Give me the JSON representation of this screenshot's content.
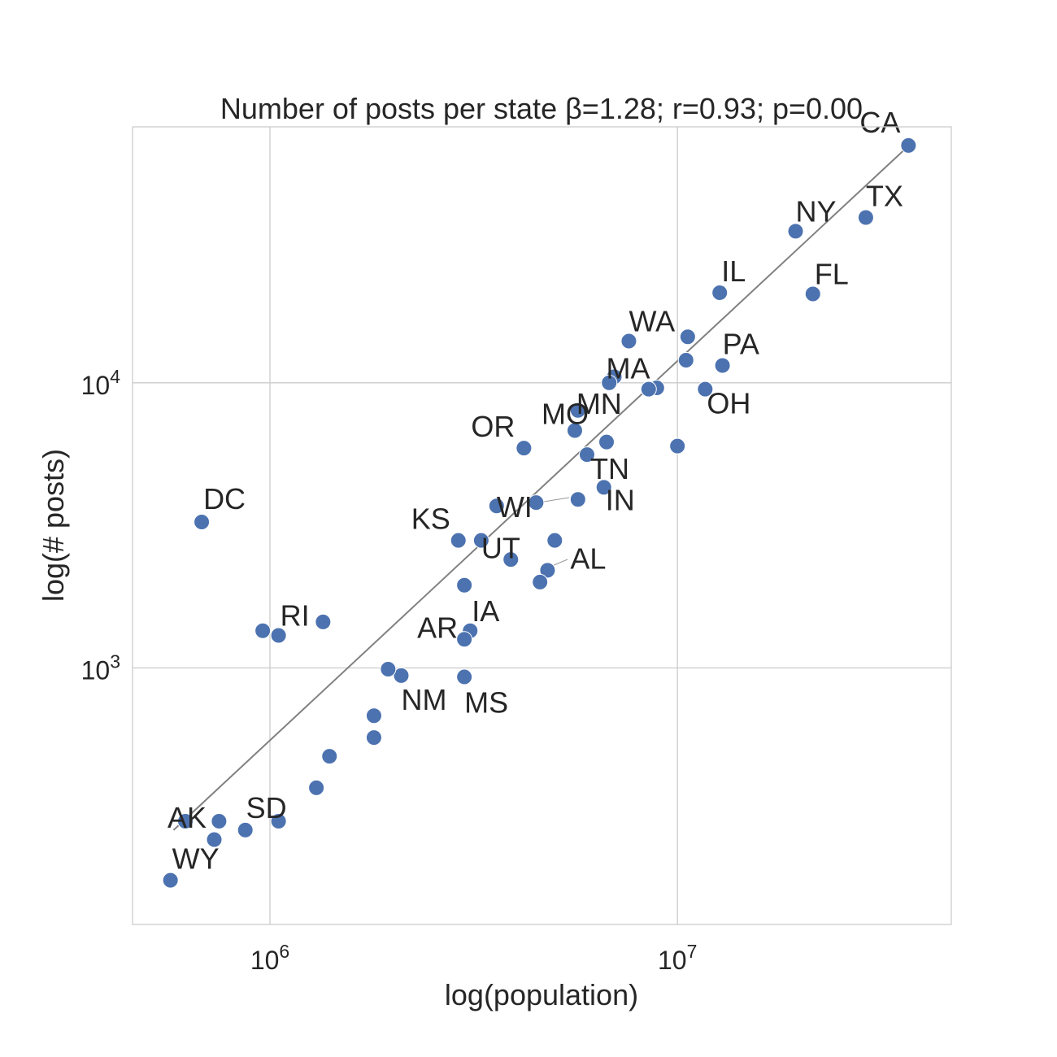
{
  "chart_data": {
    "type": "scatter",
    "title": "Number of posts per state β=1.28; r=0.93; p=0.00",
    "xlabel": "log(population)",
    "ylabel": "log(# posts)",
    "xscale": "log",
    "yscale": "log",
    "xlim": [
      460000,
      47000000
    ],
    "ylim": [
      126,
      79000
    ],
    "grid": true,
    "marker_color": "#4c72b0",
    "fit_line_color": "#808080",
    "x_ticks": [
      {
        "value": 1000000,
        "base": "10",
        "exp": "6"
      },
      {
        "value": 10000000,
        "base": "10",
        "exp": "7"
      }
    ],
    "y_ticks": [
      {
        "value": 1000,
        "base": "10",
        "exp": "3"
      },
      {
        "value": 10000,
        "base": "10",
        "exp": "4"
      }
    ],
    "fit_line": {
      "x": [
        580000,
        37000000
      ],
      "y": [
        270,
        68000
      ]
    },
    "points": [
      {
        "label": "CA",
        "x": 36900000,
        "y": 68000
      },
      {
        "label": "TX",
        "x": 29000000,
        "y": 38000
      },
      {
        "label": "NY",
        "x": 19500000,
        "y": 34000
      },
      {
        "label": "FL",
        "x": 21500000,
        "y": 20500
      },
      {
        "label": "IL",
        "x": 12700000,
        "y": 20700
      },
      {
        "label": "PA",
        "x": 12900000,
        "y": 11500
      },
      {
        "label": "OH",
        "x": 11700000,
        "y": 9500
      },
      {
        "label": "WA",
        "x": 7600000,
        "y": 14000
      },
      {
        "label": "MA",
        "x": 7000000,
        "y": 10500
      },
      {
        "label": "MN",
        "x": 5700000,
        "y": 8000
      },
      {
        "label": "TN",
        "x": 6000000,
        "y": 5600
      },
      {
        "label": "OR",
        "x": 4200000,
        "y": 5900
      },
      {
        "label": "MO",
        "x": 6700000,
        "y": 6200
      },
      {
        "label": "IN",
        "x": 6600000,
        "y": 4300
      },
      {
        "label": "WI",
        "x": 5700000,
        "y": 3900
      },
      {
        "label": "KS",
        "x": 2900000,
        "y": 2800
      },
      {
        "label": "UT",
        "x": 3300000,
        "y": 2800
      },
      {
        "label": "AL",
        "x": 4800000,
        "y": 2200
      },
      {
        "label": "IA",
        "x": 3100000,
        "y": 1350
      },
      {
        "label": "AR",
        "x": 3000000,
        "y": 1260
      },
      {
        "label": "NM",
        "x": 2100000,
        "y": 940
      },
      {
        "label": "MS",
        "x": 3000000,
        "y": 930
      },
      {
        "label": "DC",
        "x": 680000,
        "y": 3250
      },
      {
        "label": "RI",
        "x": 1050000,
        "y": 1300
      },
      {
        "label": "SD",
        "x": 1050000,
        "y": 290
      },
      {
        "label": "AK",
        "x": 620000,
        "y": 290
      },
      {
        "label": "WY",
        "x": 570000,
        "y": 180
      },
      {
        "label": "",
        "x": 10500000,
        "y": 12000
      },
      {
        "label": "",
        "x": 10600000,
        "y": 14500
      },
      {
        "label": "",
        "x": 8900000,
        "y": 9600
      },
      {
        "label": "",
        "x": 8500000,
        "y": 9500
      },
      {
        "label": "",
        "x": 6800000,
        "y": 10000
      },
      {
        "label": "",
        "x": 5600000,
        "y": 6800
      },
      {
        "label": "",
        "x": 10000000,
        "y": 6000
      },
      {
        "label": "",
        "x": 3600000,
        "y": 3700
      },
      {
        "label": "",
        "x": 4500000,
        "y": 3800
      },
      {
        "label": "",
        "x": 3900000,
        "y": 2400
      },
      {
        "label": "",
        "x": 5000000,
        "y": 2800
      },
      {
        "label": "",
        "x": 4600000,
        "y": 2000
      },
      {
        "label": "",
        "x": 3000000,
        "y": 1950
      },
      {
        "label": "",
        "x": 1350000,
        "y": 1450
      },
      {
        "label": "",
        "x": 960000,
        "y": 1350
      },
      {
        "label": "",
        "x": 1950000,
        "y": 990
      },
      {
        "label": "",
        "x": 1800000,
        "y": 680
      },
      {
        "label": "",
        "x": 1800000,
        "y": 570
      },
      {
        "label": "",
        "x": 1400000,
        "y": 490
      },
      {
        "label": "",
        "x": 1300000,
        "y": 380
      },
      {
        "label": "",
        "x": 750000,
        "y": 290
      },
      {
        "label": "",
        "x": 870000,
        "y": 270
      },
      {
        "label": "",
        "x": 730000,
        "y": 250
      }
    ]
  }
}
